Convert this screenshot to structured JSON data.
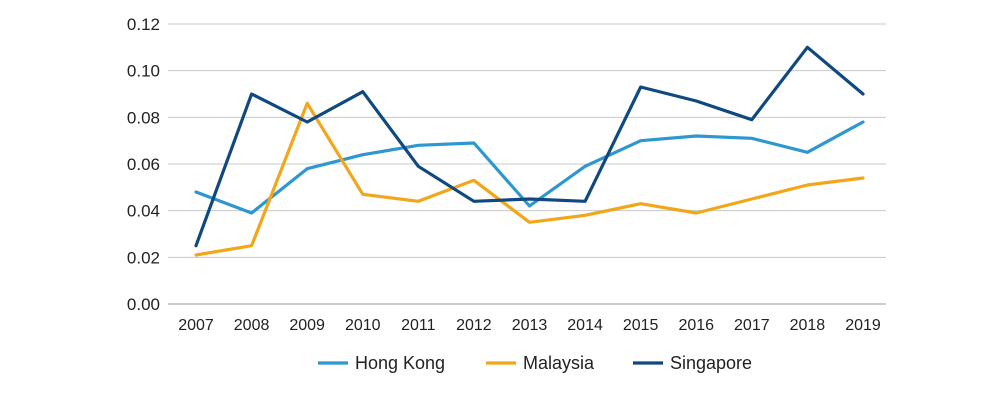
{
  "chart_data": {
    "type": "line",
    "title": "",
    "xlabel": "",
    "ylabel": "",
    "x": [
      2007,
      2008,
      2009,
      2010,
      2011,
      2012,
      2013,
      2014,
      2015,
      2016,
      2017,
      2018,
      2019
    ],
    "y_ticks": [
      "0.00",
      "0.02",
      "0.04",
      "0.06",
      "0.08",
      "0.10",
      "0.12"
    ],
    "ylim": [
      0,
      0.12
    ],
    "grid": true,
    "legend": "bottom",
    "series": [
      {
        "name": "Hong Kong",
        "color": "#2e97cf",
        "values": [
          0.048,
          0.039,
          0.058,
          0.064,
          0.068,
          0.069,
          0.042,
          0.059,
          0.07,
          0.072,
          0.071,
          0.065,
          0.078
        ]
      },
      {
        "name": "Malaysia",
        "color": "#f2a619",
        "values": [
          0.021,
          0.025,
          0.086,
          0.047,
          0.044,
          0.053,
          0.035,
          0.038,
          0.043,
          0.039,
          0.045,
          0.051,
          0.054
        ]
      },
      {
        "name": "Singapore",
        "color": "#10497f",
        "values": [
          0.025,
          0.09,
          0.078,
          0.091,
          0.059,
          0.044,
          0.045,
          0.044,
          0.093,
          0.087,
          0.079,
          0.11,
          0.09
        ]
      }
    ]
  }
}
